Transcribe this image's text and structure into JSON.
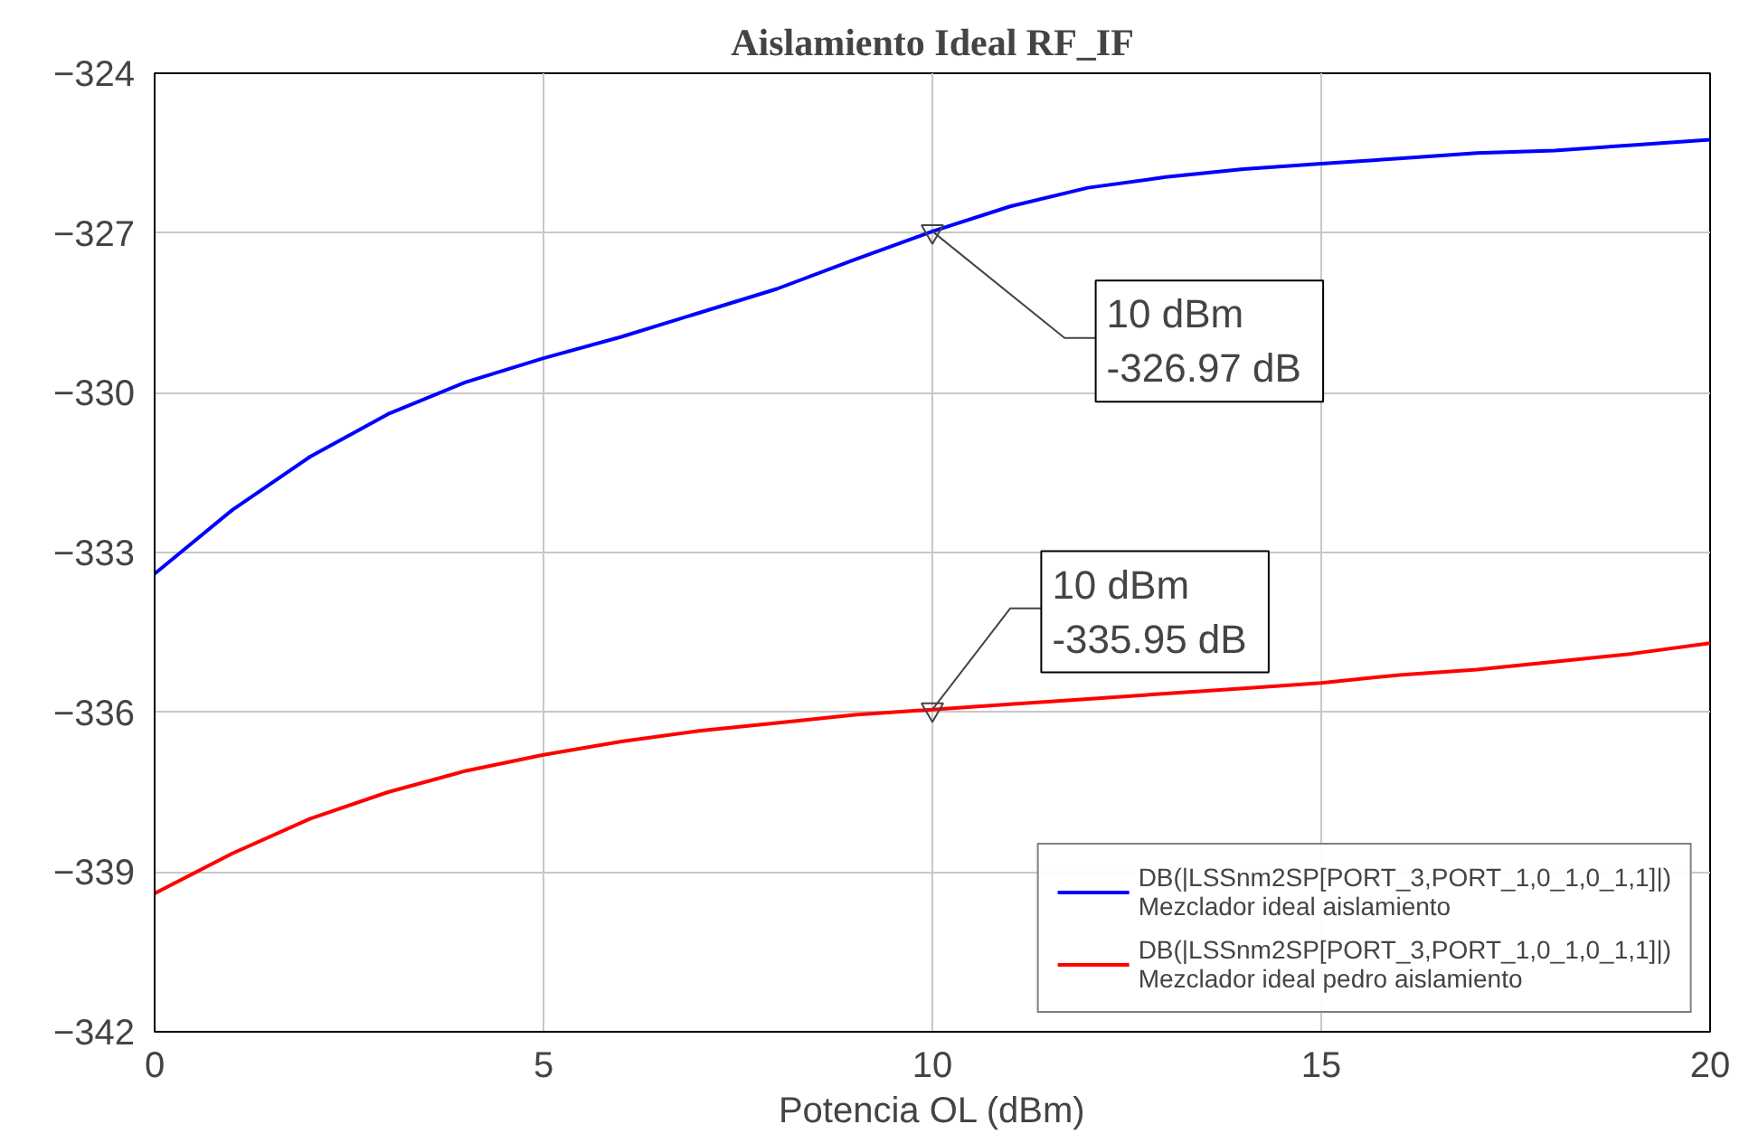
{
  "chart_data": {
    "type": "line",
    "title": "Aislamiento Ideal RF_IF",
    "xlabel": "Potencia OL (dBm)",
    "x": [
      0,
      1,
      2,
      3,
      4,
      5,
      6,
      7,
      8,
      9,
      10,
      11,
      12,
      13,
      14,
      15,
      16,
      17,
      18,
      19,
      20
    ],
    "series": [
      {
        "name": "DB(|LSSnm2SP[PORT_3,PORT_1,0_1,0_1,1]|)\nMezclador ideal aislamiento",
        "color": "#0000ff",
        "values": [
          -333.4,
          -332.2,
          -331.2,
          -330.4,
          -329.8,
          -329.35,
          -328.95,
          -328.5,
          -328.05,
          -327.5,
          -326.97,
          -326.5,
          -326.15,
          -325.95,
          -325.8,
          -325.7,
          -325.6,
          -325.5,
          -325.45,
          -325.35,
          -325.25
        ]
      },
      {
        "name": "DB(|LSSnm2SP[PORT_3,PORT_1,0_1,0_1,1]|)\nMezclador ideal pedro aislamiento",
        "color": "#ff0000",
        "values": [
          -339.4,
          -338.65,
          -338.0,
          -337.5,
          -337.1,
          -336.8,
          -336.55,
          -336.35,
          -336.2,
          -336.05,
          -335.95,
          -335.85,
          -335.75,
          -335.65,
          -335.55,
          -335.45,
          -335.3,
          -335.2,
          -335.05,
          -334.9,
          -334.7
        ]
      }
    ],
    "annotations": [
      {
        "text": "10 dBm\n -326.97 dB",
        "x": 10,
        "y": -326.97
      },
      {
        "text": "10 dBm\n -335.95 dB",
        "x": 10,
        "y": -335.95
      }
    ],
    "xlim": [
      0,
      20
    ],
    "xticks": [
      0,
      5,
      10,
      15,
      20
    ],
    "ylim": [
      -342,
      -324
    ],
    "yticks": [
      -342,
      -339,
      -336,
      -333,
      -330,
      -327,
      -324
    ],
    "grid": true,
    "legend": "bottom right",
    "marker": "none",
    "line_style": "solid"
  }
}
